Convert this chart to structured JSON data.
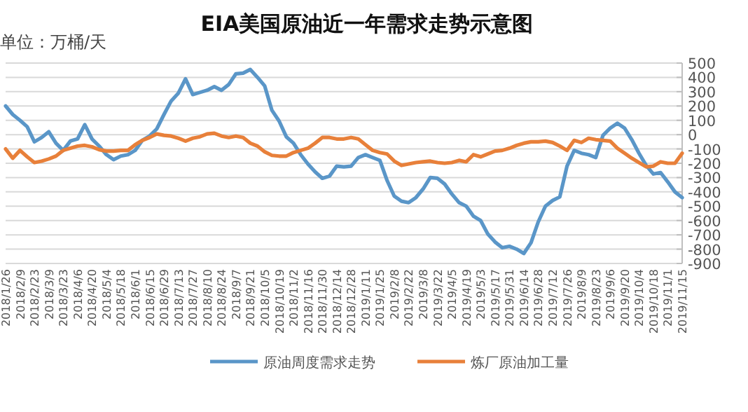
{
  "chart_data": {
    "type": "line",
    "title": "EIA美国原油近一年需求走势示意图",
    "annotations": [
      "单位：万桶/天"
    ],
    "categories": [
      "2018/1/26",
      null,
      "2018/2/9",
      null,
      "2018/2/23",
      null,
      "2018/3/9",
      null,
      "2018/3/23",
      null,
      "2018/4/6",
      null,
      "2018/4/20",
      null,
      "2018/5/4",
      null,
      "2018/5/18",
      null,
      "2018/6/1",
      null,
      "2018/6/15",
      null,
      "2018/6/29",
      null,
      "2018/7/13",
      null,
      "2018/7/27",
      null,
      "2018/8/10",
      null,
      "2018/8/24",
      null,
      "2018/9/7",
      null,
      "2018/9/21",
      null,
      "2018/10/5",
      null,
      "2018/10/19",
      null,
      "2018/11/2",
      null,
      "2018/11/16",
      null,
      "2018/11/30",
      null,
      "2018/12/14",
      null,
      "2018/12/28",
      null,
      "2019/1/11",
      null,
      "2019/1/25",
      null,
      "2019/2/8",
      null,
      "2019/2/22",
      null,
      "2019/3/8",
      null,
      "2019/3/22",
      null,
      "2019/4/5",
      null,
      "2019/4/19",
      null,
      "2019/5/3",
      null,
      "2019/5/17",
      null,
      "2019/5/31",
      null,
      "2019/6/14",
      null,
      "2019/6/28",
      null,
      "2019/7/12",
      null,
      "2019/7/26",
      null,
      "2019/8/9",
      null,
      "2019/8/23",
      null,
      "2019/9/6",
      null,
      "2019/9/20",
      null,
      "2019/10/4",
      null,
      "2019/10/18",
      null,
      "2019/11/1",
      null,
      "2019/11/15"
    ],
    "series": [
      {
        "name": "原油周度需求走势",
        "color": "#5a96c8",
        "values": [
          200,
          140,
          100,
          55,
          -50,
          -20,
          20,
          -60,
          -110,
          -45,
          -30,
          70,
          -30,
          -80,
          -140,
          -175,
          -150,
          -140,
          -110,
          -40,
          -10,
          40,
          140,
          235,
          290,
          390,
          280,
          295,
          310,
          335,
          310,
          350,
          425,
          430,
          455,
          400,
          340,
          170,
          95,
          -15,
          -60,
          -140,
          -205,
          -260,
          -305,
          -290,
          -220,
          -225,
          -220,
          -160,
          -140,
          -160,
          -180,
          -320,
          -430,
          -465,
          -475,
          -440,
          -380,
          -300,
          -305,
          -345,
          -415,
          -475,
          -500,
          -570,
          -600,
          -695,
          -750,
          -790,
          -780,
          -800,
          -830,
          -755,
          -610,
          -500,
          -460,
          -435,
          -220,
          -110,
          -130,
          -140,
          -160,
          -5,
          45,
          80,
          45,
          -35,
          -130,
          -215,
          -275,
          -265,
          -330,
          -400,
          -440
        ]
      },
      {
        "name": "炼厂原油加工量",
        "color": "#e8803a",
        "values": [
          -100,
          -165,
          -110,
          -155,
          -195,
          -185,
          -170,
          -150,
          -110,
          -95,
          -80,
          -75,
          -85,
          -105,
          -115,
          -115,
          -110,
          -110,
          -70,
          -40,
          -20,
          5,
          -5,
          -10,
          -25,
          -45,
          -25,
          -15,
          5,
          10,
          -10,
          -20,
          -10,
          -20,
          -60,
          -80,
          -120,
          -145,
          -150,
          -150,
          -125,
          -110,
          -95,
          -60,
          -20,
          -20,
          -30,
          -30,
          -20,
          -30,
          -70,
          -110,
          -125,
          -135,
          -185,
          -215,
          -205,
          -195,
          -190,
          -185,
          -195,
          -200,
          -195,
          -180,
          -190,
          -140,
          -155,
          -135,
          -115,
          -110,
          -95,
          -75,
          -60,
          -50,
          -50,
          -45,
          -55,
          -80,
          -110,
          -40,
          -55,
          -25,
          -35,
          -40,
          -45,
          -95,
          -130,
          -165,
          -195,
          -225,
          -220,
          -190,
          -200,
          -200,
          -130
        ]
      }
    ],
    "ylim": [
      -900,
      500
    ],
    "yticks": [
      -900,
      -800,
      -700,
      -600,
      -500,
      -400,
      -300,
      -200,
      -100,
      0,
      100,
      200,
      300,
      400,
      500
    ],
    "grid": "y",
    "legend": "bottom"
  }
}
